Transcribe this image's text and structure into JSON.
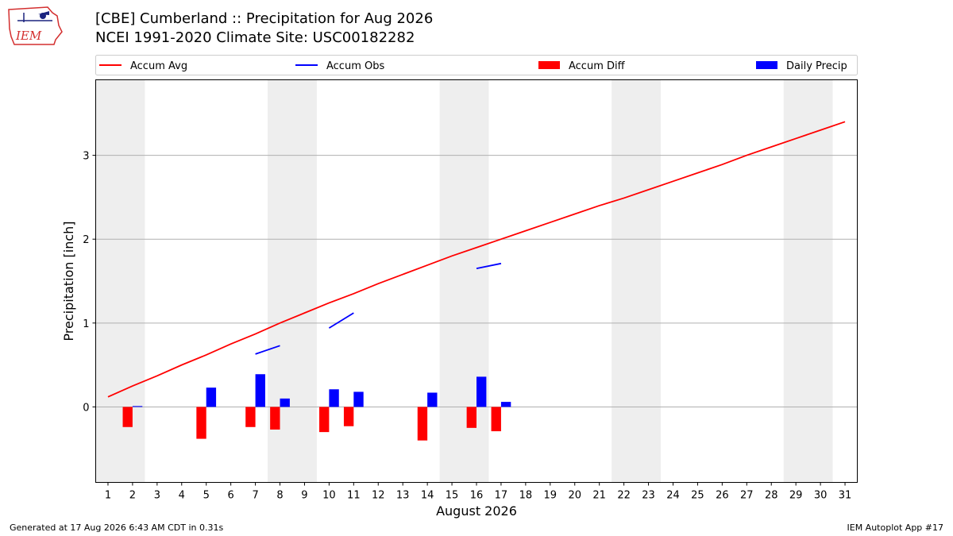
{
  "header": {
    "logo_text": "IEM",
    "title_line_1": "[CBE] Cumberland :: Precipitation for Aug 2026",
    "title_line_2": "NCEI 1991-2020 Climate Site: USC00182282"
  },
  "footer": {
    "left": "Generated at 17 Aug 2026 6:43 AM CDT in 0.31s",
    "right": "IEM Autoplot App #17"
  },
  "chart_data": {
    "type": "bar",
    "title": "",
    "xlabel": "August 2026",
    "ylabel": "Precipitation [inch]",
    "xlim": [
      0.5,
      31.5
    ],
    "ylim": [
      -0.9,
      3.9
    ],
    "yticks": [
      0,
      1,
      2,
      3
    ],
    "xticks": [
      1,
      2,
      3,
      4,
      5,
      6,
      7,
      8,
      9,
      10,
      11,
      12,
      13,
      14,
      15,
      16,
      17,
      18,
      19,
      20,
      21,
      22,
      23,
      24,
      25,
      26,
      27,
      28,
      29,
      30,
      31
    ],
    "grid": "horizontal",
    "legend_placement": "top",
    "weekend_shading": [
      [
        0.5,
        2.5
      ],
      [
        7.5,
        9.5
      ],
      [
        14.5,
        16.5
      ],
      [
        21.5,
        23.5
      ],
      [
        28.5,
        30.5
      ]
    ],
    "legend": [
      {
        "label": "Accum Avg",
        "kind": "line",
        "color": "#ff0000"
      },
      {
        "label": "Accum Obs",
        "kind": "line",
        "color": "#0000ff"
      },
      {
        "label": "Accum Diff",
        "kind": "bar",
        "color": "#ff0000"
      },
      {
        "label": "Daily Precip",
        "kind": "bar",
        "color": "#0000ff"
      }
    ],
    "series": [
      {
        "name": "Accum Avg",
        "color": "#ff0000",
        "x": [
          1,
          2,
          3,
          4,
          5,
          6,
          7,
          8,
          9,
          10,
          11,
          12,
          13,
          14,
          15,
          16,
          17,
          18,
          19,
          20,
          21,
          22,
          23,
          24,
          25,
          26,
          27,
          28,
          29,
          30,
          31
        ],
        "values": [
          0.12,
          0.25,
          0.37,
          0.5,
          0.62,
          0.75,
          0.87,
          1.0,
          1.12,
          1.24,
          1.35,
          1.47,
          1.58,
          1.69,
          1.8,
          1.9,
          2.0,
          2.1,
          2.2,
          2.3,
          2.4,
          2.49,
          2.59,
          2.69,
          2.79,
          2.89,
          3.0,
          3.1,
          3.2,
          3.3,
          3.4
        ]
      },
      {
        "name": "Accum Obs",
        "color": "#0000ff",
        "segments": [
          {
            "x": [
              7,
              8
            ],
            "values": [
              0.63,
              0.73
            ]
          },
          {
            "x": [
              10,
              11
            ],
            "values": [
              0.94,
              1.12
            ]
          },
          {
            "x": [
              16,
              17
            ],
            "values": [
              1.65,
              1.71
            ]
          }
        ]
      },
      {
        "name": "Accum Diff",
        "color": "#ff0000",
        "x": [
          2,
          5,
          7,
          8,
          10,
          11,
          14,
          16,
          17
        ],
        "values": [
          -0.24,
          -0.38,
          -0.24,
          -0.27,
          -0.3,
          -0.23,
          -0.4,
          -0.25,
          -0.29
        ]
      },
      {
        "name": "Daily Precip",
        "color": "#0000ff",
        "x": [
          2,
          5,
          7,
          8,
          10,
          11,
          14,
          16,
          17
        ],
        "values": [
          0.01,
          0.23,
          0.39,
          0.1,
          0.21,
          0.18,
          0.17,
          0.36,
          0.06
        ]
      }
    ]
  }
}
